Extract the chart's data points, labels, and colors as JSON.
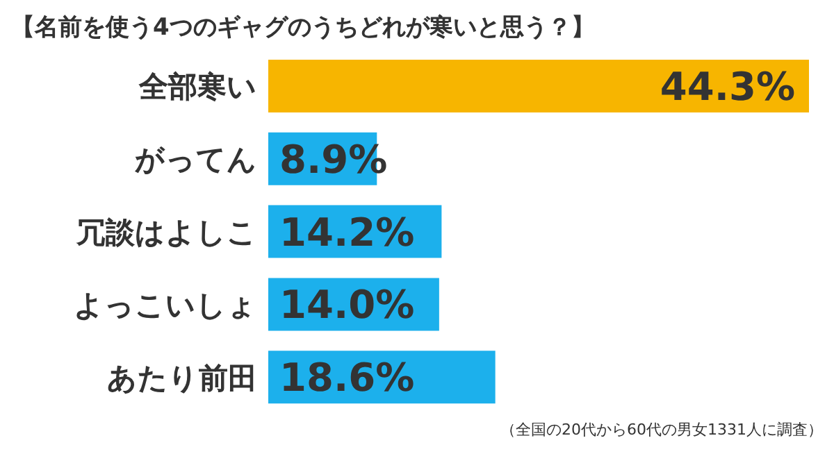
{
  "chart_data": {
    "type": "bar",
    "orientation": "horizontal",
    "title": "【名前を使う4つのギャグのうちどれが寒いと思う？】",
    "categories": [
      "全部寒い",
      "がってん",
      "冗談はよしこ",
      "よっこいしょ",
      "あたり前田"
    ],
    "values": [
      44.3,
      8.9,
      14.2,
      14.0,
      18.6
    ],
    "value_labels": [
      "44.3%",
      "8.9%",
      "14.2%",
      "14.0%",
      "18.6%"
    ],
    "colors": [
      "#f7b500",
      "#1cb0ec",
      "#1cb0ec",
      "#1cb0ec",
      "#1cb0ec"
    ],
    "annotations": [
      "（全国の20代から60代の男女1331人に調査）"
    ]
  }
}
